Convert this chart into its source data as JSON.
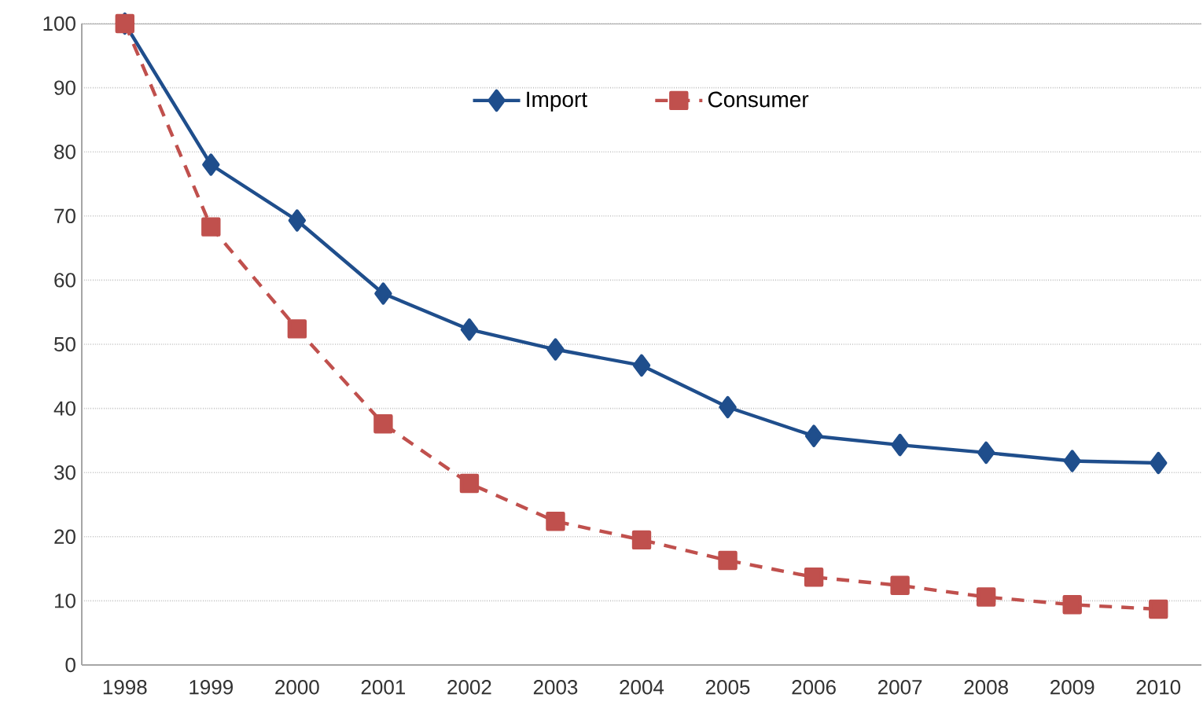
{
  "chart_data": {
    "type": "line",
    "categories": [
      "1998",
      "1999",
      "2000",
      "2001",
      "2002",
      "2003",
      "2004",
      "2005",
      "2006",
      "2007",
      "2008",
      "2009",
      "2010"
    ],
    "series": [
      {
        "name": "Import",
        "color": "#1f4e8c",
        "marker": "diamond",
        "line_style": "solid",
        "values": [
          100,
          78,
          69.3,
          57.9,
          52.3,
          49.2,
          46.7,
          40.2,
          35.7,
          34.3,
          33.1,
          31.8,
          31.5
        ]
      },
      {
        "name": "Consumer",
        "color": "#c0504d",
        "marker": "square",
        "line_style": "dashed",
        "values": [
          100,
          68.3,
          52.4,
          37.6,
          28.3,
          22.4,
          19.5,
          16.3,
          13.7,
          12.4,
          10.6,
          9.4,
          8.7
        ]
      }
    ],
    "ylim": [
      0,
      100
    ],
    "yticks": [
      0,
      10,
      20,
      30,
      40,
      50,
      60,
      70,
      80,
      90,
      100
    ],
    "grid": "y",
    "legend": "top"
  }
}
